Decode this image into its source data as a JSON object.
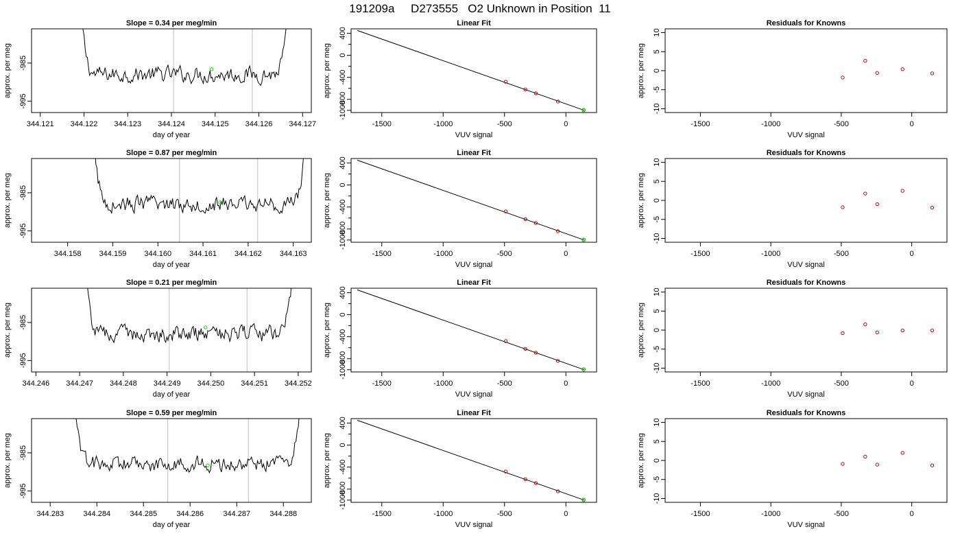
{
  "title": "191209a     D273555   O2 Unknown in Position  11",
  "colors": {
    "trace": "#000000",
    "gridline": "#c8c8c8",
    "unknown_point": "#00dd00",
    "known_point": "#cc0000",
    "fit_line": "#000000"
  },
  "chart_data": [
    {
      "type": "line",
      "title": "Slope =  0.34  per meg/min",
      "xlabel": "day of year",
      "ylabel": "approx. per meg",
      "xlim": [
        344.1208,
        344.1272
      ],
      "ylim": [
        -998,
        -976
      ],
      "xticks": [
        "344.121",
        "344.122",
        "344.123",
        "344.124",
        "344.125",
        "344.126",
        "344.127"
      ],
      "yticks": [
        "-985",
        "-995"
      ],
      "trace_start": 344.1219,
      "trace_end": 344.1267,
      "trace_mean": -988,
      "edge_value": -968,
      "vlines": [
        344.12405,
        344.12585
      ],
      "marker": {
        "x": 344.12492,
        "y": -986.6
      }
    },
    {
      "type": "scatter",
      "title": "Linear Fit",
      "xlabel": "VUV signal",
      "ylabel": "approx. per meg",
      "xlim": [
        -1750,
        250
      ],
      "ylim": [
        -1040,
        480
      ],
      "xticks": [
        "-1500",
        "-1000",
        "-500",
        "0"
      ],
      "yticks": [
        "-1000",
        "-800",
        "-400",
        "0",
        "400"
      ],
      "line": {
        "x": [
          -1700,
          150
        ],
        "y": [
          450,
          -1000
        ]
      },
      "x": [
        -490,
        -330,
        -245,
        -65,
        145
      ],
      "y": [
        -480,
        -620,
        -690,
        -840,
        -995
      ],
      "unknown": {
        "x": 145,
        "y": -995
      }
    },
    {
      "type": "scatter",
      "title": "Residuals for Knowns",
      "xlabel": "VUV signal",
      "ylabel": "approx. per meg",
      "xlim": [
        -1750,
        250
      ],
      "ylim": [
        -11,
        11
      ],
      "xticks": [
        "-1500",
        "-1000",
        "-500",
        "0"
      ],
      "yticks": [
        "-10",
        "-5",
        "0",
        "5",
        "10"
      ],
      "x": [
        -490,
        -330,
        -245,
        -65,
        145
      ],
      "y": [
        -1.8,
        2.6,
        -0.6,
        0.4,
        -0.7
      ]
    },
    {
      "type": "line",
      "title": "Slope =  0.87  per meg/min",
      "xlabel": "day of year",
      "ylabel": "approx. per meg",
      "xlim": [
        344.1572,
        344.1634
      ],
      "ylim": [
        -998,
        -976
      ],
      "xticks": [
        "344.158",
        "344.159",
        "344.160",
        "344.161",
        "344.162",
        "344.163"
      ],
      "yticks": [
        "-985",
        "-995"
      ],
      "trace_start": 344.15855,
      "trace_end": 344.1633,
      "trace_mean": -988,
      "edge_value": -968,
      "vlines": [
        344.16048,
        344.16221
      ],
      "marker": {
        "x": 344.16138,
        "y": -987.5
      }
    },
    {
      "type": "scatter",
      "title": "Linear Fit",
      "xlabel": "VUV signal",
      "ylabel": "approx. per meg",
      "xlim": [
        -1750,
        250
      ],
      "ylim": [
        -1040,
        480
      ],
      "xticks": [
        "-1500",
        "-1000",
        "-500",
        "0"
      ],
      "yticks": [
        "-1000",
        "-800",
        "-400",
        "0",
        "400"
      ],
      "line": {
        "x": [
          -1700,
          150
        ],
        "y": [
          450,
          -1000
        ]
      },
      "x": [
        -490,
        -330,
        -245,
        -65,
        145
      ],
      "y": [
        -480,
        -620,
        -690,
        -840,
        -995
      ],
      "unknown": {
        "x": 145,
        "y": -995
      }
    },
    {
      "type": "scatter",
      "title": "Residuals for Knowns",
      "xlabel": "VUV signal",
      "ylabel": "approx. per meg",
      "xlim": [
        -1750,
        250
      ],
      "ylim": [
        -11,
        11
      ],
      "xticks": [
        "-1500",
        "-1000",
        "-500",
        "0"
      ],
      "yticks": [
        "-10",
        "-5",
        "0",
        "5",
        "10"
      ],
      "x": [
        -490,
        -330,
        -245,
        -65,
        145
      ],
      "y": [
        -1.8,
        1.8,
        -1.0,
        2.5,
        -1.9
      ]
    },
    {
      "type": "line",
      "title": "Slope =  0.21  per meg/min",
      "xlabel": "day of year",
      "ylabel": "approx. per meg",
      "xlim": [
        344.2459,
        344.2523
      ],
      "ylim": [
        -998,
        -976
      ],
      "xticks": [
        "344.246",
        "344.247",
        "344.248",
        "344.249",
        "344.250",
        "344.251",
        "344.252"
      ],
      "yticks": [
        "-985",
        "-995"
      ],
      "trace_start": 344.2471,
      "trace_end": 344.2519,
      "trace_mean": -988,
      "edge_value": -968,
      "vlines": [
        344.24905,
        344.25083
      ],
      "marker": {
        "x": 344.24988,
        "y": -986.3
      }
    },
    {
      "type": "scatter",
      "title": "Linear Fit",
      "xlabel": "VUV signal",
      "ylabel": "approx. per meg",
      "xlim": [
        -1750,
        250
      ],
      "ylim": [
        -1040,
        480
      ],
      "xticks": [
        "-1500",
        "-1000",
        "-500",
        "0"
      ],
      "yticks": [
        "-1000",
        "-800",
        "-400",
        "0",
        "400"
      ],
      "line": {
        "x": [
          -1700,
          150
        ],
        "y": [
          450,
          -1000
        ]
      },
      "x": [
        -490,
        -330,
        -245,
        -65,
        145
      ],
      "y": [
        -480,
        -620,
        -690,
        -840,
        -995
      ],
      "unknown": {
        "x": 145,
        "y": -995
      }
    },
    {
      "type": "scatter",
      "title": "Residuals for Knowns",
      "xlabel": "VUV signal",
      "ylabel": "approx. per meg",
      "xlim": [
        -1750,
        250
      ],
      "ylim": [
        -11,
        11
      ],
      "xticks": [
        "-1500",
        "-1000",
        "-500",
        "0"
      ],
      "yticks": [
        "-10",
        "-5",
        "0",
        "5",
        "10"
      ],
      "x": [
        -490,
        -330,
        -245,
        -65,
        145
      ],
      "y": [
        -0.8,
        1.5,
        -0.6,
        -0.1,
        -0.1
      ]
    },
    {
      "type": "line",
      "title": "Slope =  0.59  per meg/min",
      "xlabel": "day of year",
      "ylabel": "approx. per meg",
      "xlim": [
        344.2826,
        344.2886
      ],
      "ylim": [
        -998,
        -976
      ],
      "xticks": [
        "344.283",
        "344.284",
        "344.285",
        "344.286",
        "344.287",
        "344.288"
      ],
      "yticks": [
        "-985",
        "-995"
      ],
      "trace_start": 344.2835,
      "trace_end": 344.2884,
      "trace_mean": -988,
      "edge_value": -968,
      "vlines": [
        344.28552,
        344.28725
      ],
      "marker": {
        "x": 344.28638,
        "y": -988.3
      }
    },
    {
      "type": "scatter",
      "title": "Linear Fit",
      "xlabel": "VUV signal",
      "ylabel": "approx. per meg",
      "xlim": [
        -1750,
        250
      ],
      "ylim": [
        -1040,
        480
      ],
      "xticks": [
        "-1500",
        "-1000",
        "-500",
        "0"
      ],
      "yticks": [
        "-1000",
        "-800",
        "-400",
        "0",
        "400"
      ],
      "line": {
        "x": [
          -1700,
          150
        ],
        "y": [
          450,
          -1000
        ]
      },
      "x": [
        -490,
        -330,
        -245,
        -65,
        145
      ],
      "y": [
        -480,
        -620,
        -690,
        -840,
        -995
      ],
      "unknown": {
        "x": 145,
        "y": -995
      }
    },
    {
      "type": "scatter",
      "title": "Residuals for Knowns",
      "xlabel": "VUV signal",
      "ylabel": "approx. per meg",
      "xlim": [
        -1750,
        250
      ],
      "ylim": [
        -11,
        11
      ],
      "xticks": [
        "-1500",
        "-1000",
        "-500",
        "0"
      ],
      "yticks": [
        "-10",
        "-5",
        "0",
        "5",
        "10"
      ],
      "x": [
        -490,
        -330,
        -245,
        -65,
        145
      ],
      "y": [
        -0.9,
        1.0,
        -1.1,
        2.0,
        -1.3
      ]
    }
  ]
}
